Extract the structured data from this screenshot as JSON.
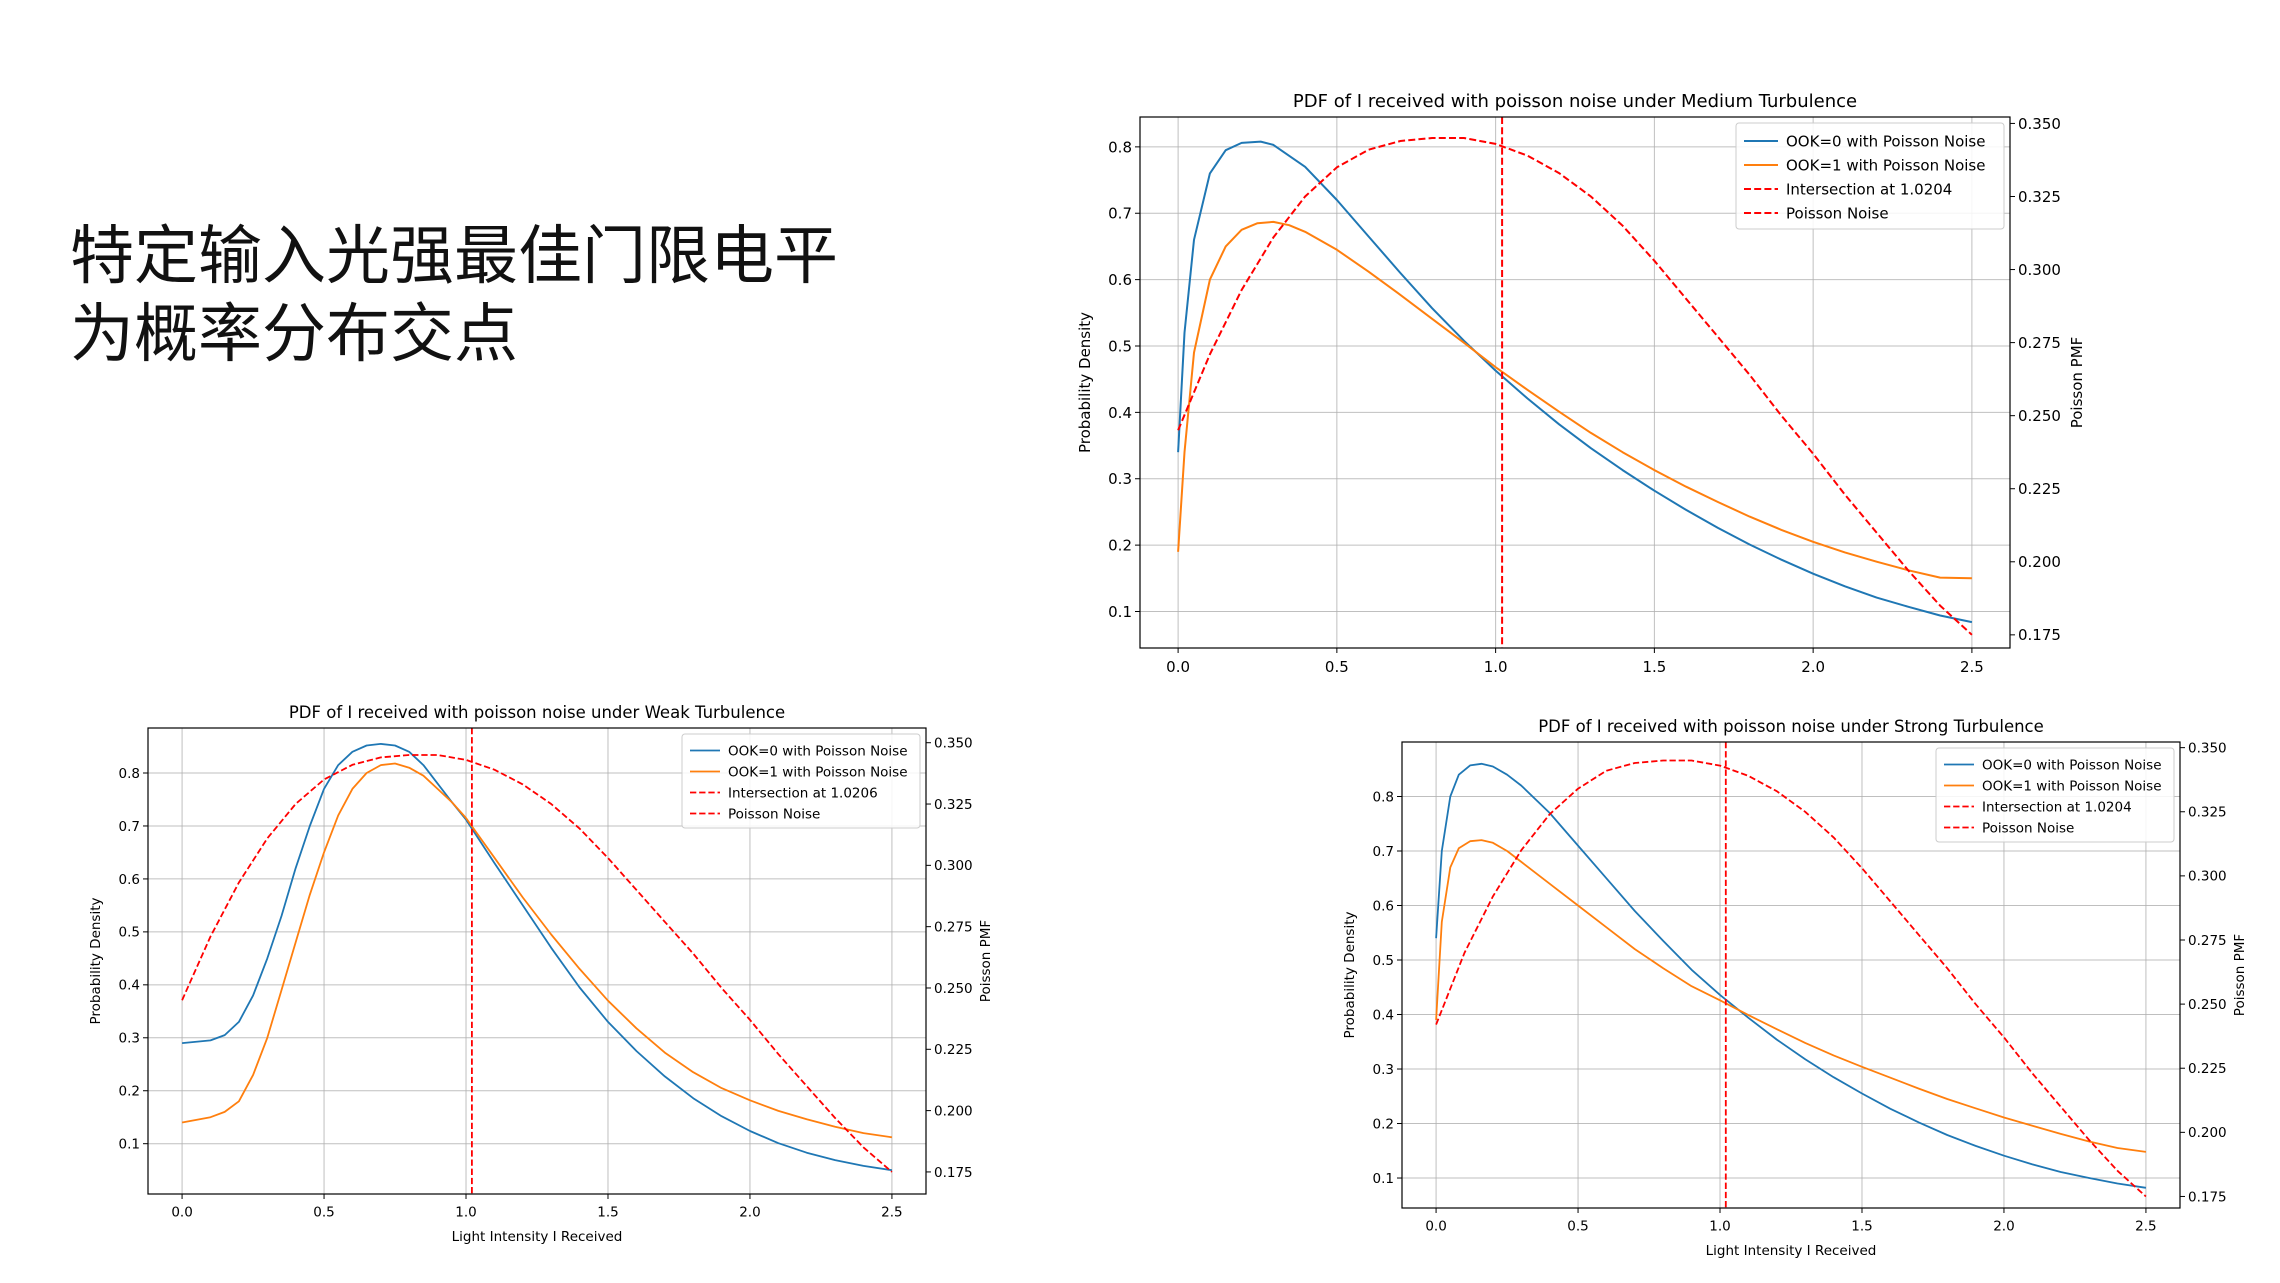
{
  "slide": {
    "title_line1": "特定输入光强最佳门限电平",
    "title_line2": "为概率分布交点"
  },
  "chart_data": [
    {
      "type": "line",
      "panel": "top-right",
      "title": "PDF of I received with poisson noise under Medium Turbulence",
      "xlabel": "",
      "ylabel": "Probability Density",
      "y2label": "Poisson PMF",
      "xlim": [
        -0.12,
        2.62
      ],
      "ylim": [
        0.045,
        0.845
      ],
      "y2lim": [
        0.1705,
        0.3522
      ],
      "xticks": [
        0.0,
        0.5,
        1.0,
        1.5,
        2.0,
        2.5
      ],
      "xtick_labels": [
        "0.0",
        "0.5",
        "1.0",
        "1.5",
        "2.0",
        "2.5"
      ],
      "yticks": [
        0.1,
        0.2,
        0.3,
        0.4,
        0.5,
        0.6,
        0.7,
        0.8
      ],
      "ytick_labels": [
        "0.1",
        "0.2",
        "0.3",
        "0.4",
        "0.5",
        "0.6",
        "0.7",
        "0.8"
      ],
      "y2ticks": [
        0.175,
        0.2,
        0.225,
        0.25,
        0.275,
        0.3,
        0.325,
        0.35
      ],
      "y2tick_labels": [
        "0.175",
        "0.200",
        "0.225",
        "0.250",
        "0.275",
        "0.300",
        "0.325",
        "0.350"
      ],
      "grid": true,
      "legend_position": "top-right",
      "intersection_x": 1.0204,
      "series": [
        {
          "name": "OOK=0 with Poisson Noise",
          "color": "#1f77b4",
          "style": "solid",
          "axis": "left",
          "x": [
            0.0,
            0.02,
            0.05,
            0.1,
            0.15,
            0.2,
            0.26,
            0.3,
            0.4,
            0.5,
            0.6,
            0.7,
            0.8,
            0.9,
            1.0,
            1.1,
            1.2,
            1.3,
            1.4,
            1.5,
            1.6,
            1.7,
            1.8,
            1.9,
            2.0,
            2.1,
            2.2,
            2.3,
            2.4,
            2.5
          ],
          "y": [
            0.34,
            0.52,
            0.66,
            0.76,
            0.795,
            0.806,
            0.808,
            0.803,
            0.77,
            0.72,
            0.665,
            0.61,
            0.557,
            0.508,
            0.463,
            0.421,
            0.382,
            0.346,
            0.313,
            0.282,
            0.253,
            0.226,
            0.201,
            0.178,
            0.157,
            0.138,
            0.121,
            0.107,
            0.094,
            0.084
          ]
        },
        {
          "name": "OOK=1 with Poisson Noise",
          "color": "#ff7f0e",
          "style": "solid",
          "axis": "left",
          "x": [
            0.0,
            0.02,
            0.05,
            0.1,
            0.15,
            0.2,
            0.25,
            0.3,
            0.35,
            0.4,
            0.5,
            0.6,
            0.7,
            0.8,
            0.9,
            1.0,
            1.1,
            1.2,
            1.3,
            1.4,
            1.5,
            1.6,
            1.7,
            1.8,
            1.9,
            2.0,
            2.1,
            2.2,
            2.3,
            2.4,
            2.5
          ],
          "y": [
            0.19,
            0.34,
            0.49,
            0.6,
            0.65,
            0.675,
            0.685,
            0.687,
            0.682,
            0.672,
            0.645,
            0.612,
            0.577,
            0.541,
            0.505,
            0.468,
            0.434,
            0.401,
            0.369,
            0.34,
            0.313,
            0.288,
            0.265,
            0.243,
            0.223,
            0.205,
            0.189,
            0.175,
            0.162,
            0.151,
            0.15
          ]
        },
        {
          "name": "Intersection at 1.0204",
          "color": "#ff0000",
          "style": "dashed",
          "axis": "vertical-line",
          "x": [
            1.0204,
            1.0204
          ],
          "y": [
            0.045,
            0.845
          ]
        },
        {
          "name": "Poisson Noise",
          "color": "#ff0000",
          "style": "dashed",
          "axis": "right",
          "x": [
            0.0,
            0.1,
            0.2,
            0.3,
            0.4,
            0.5,
            0.6,
            0.7,
            0.8,
            0.9,
            1.0,
            1.1,
            1.2,
            1.3,
            1.4,
            1.5,
            1.6,
            1.7,
            1.8,
            1.9,
            2.0,
            2.1,
            2.2,
            2.3,
            2.4,
            2.5
          ],
          "y": [
            0.245,
            0.271,
            0.293,
            0.311,
            0.325,
            0.335,
            0.341,
            0.344,
            0.345,
            0.345,
            0.343,
            0.339,
            0.333,
            0.325,
            0.315,
            0.303,
            0.29,
            0.277,
            0.264,
            0.25,
            0.237,
            0.223,
            0.21,
            0.197,
            0.185,
            0.175
          ]
        }
      ]
    },
    {
      "type": "line",
      "panel": "bottom-left",
      "title": "PDF of I received with poisson noise under Weak Turbulence",
      "xlabel": "Light Intensity I Received",
      "ylabel": "Probability Density",
      "y2label": "Poisson PMF",
      "xlim": [
        -0.12,
        2.62
      ],
      "ylim": [
        0.005,
        0.885
      ],
      "y2lim": [
        0.166,
        0.356
      ],
      "xticks": [
        0.0,
        0.5,
        1.0,
        1.5,
        2.0,
        2.5
      ],
      "xtick_labels": [
        "0.0",
        "0.5",
        "1.0",
        "1.5",
        "2.0",
        "2.5"
      ],
      "yticks": [
        0.1,
        0.2,
        0.3,
        0.4,
        0.5,
        0.6,
        0.7,
        0.8
      ],
      "ytick_labels": [
        "0.1",
        "0.2",
        "0.3",
        "0.4",
        "0.5",
        "0.6",
        "0.7",
        "0.8"
      ],
      "y2ticks": [
        0.175,
        0.2,
        0.225,
        0.25,
        0.275,
        0.3,
        0.325,
        0.35
      ],
      "y2tick_labels": [
        "0.175",
        "0.200",
        "0.225",
        "0.250",
        "0.275",
        "0.300",
        "0.325",
        "0.350"
      ],
      "grid": true,
      "legend_position": "top-right",
      "intersection_x": 1.0206,
      "series": [
        {
          "name": "OOK=0 with Poisson Noise",
          "color": "#1f77b4",
          "style": "solid",
          "axis": "left",
          "x": [
            0.0,
            0.1,
            0.15,
            0.2,
            0.25,
            0.3,
            0.35,
            0.4,
            0.45,
            0.5,
            0.55,
            0.6,
            0.65,
            0.7,
            0.75,
            0.8,
            0.85,
            0.9,
            0.95,
            1.0,
            1.1,
            1.2,
            1.3,
            1.4,
            1.5,
            1.6,
            1.7,
            1.8,
            1.9,
            2.0,
            2.1,
            2.2,
            2.3,
            2.4,
            2.5
          ],
          "y": [
            0.29,
            0.295,
            0.305,
            0.33,
            0.38,
            0.45,
            0.53,
            0.62,
            0.7,
            0.77,
            0.815,
            0.84,
            0.852,
            0.855,
            0.852,
            0.84,
            0.815,
            0.78,
            0.745,
            0.712,
            0.63,
            0.55,
            0.47,
            0.395,
            0.33,
            0.275,
            0.227,
            0.186,
            0.152,
            0.124,
            0.101,
            0.083,
            0.069,
            0.058,
            0.05
          ]
        },
        {
          "name": "OOK=1 with Poisson Noise",
          "color": "#ff7f0e",
          "style": "solid",
          "axis": "left",
          "x": [
            0.0,
            0.1,
            0.15,
            0.2,
            0.25,
            0.3,
            0.35,
            0.4,
            0.45,
            0.5,
            0.55,
            0.6,
            0.65,
            0.7,
            0.75,
            0.8,
            0.85,
            0.9,
            0.95,
            1.0,
            1.1,
            1.2,
            1.3,
            1.4,
            1.5,
            1.6,
            1.7,
            1.8,
            1.9,
            2.0,
            2.1,
            2.2,
            2.3,
            2.4,
            2.5
          ],
          "y": [
            0.14,
            0.15,
            0.16,
            0.18,
            0.23,
            0.3,
            0.39,
            0.48,
            0.57,
            0.65,
            0.72,
            0.77,
            0.8,
            0.815,
            0.818,
            0.81,
            0.795,
            0.77,
            0.745,
            0.715,
            0.64,
            0.565,
            0.495,
            0.43,
            0.37,
            0.318,
            0.272,
            0.235,
            0.205,
            0.182,
            0.162,
            0.146,
            0.132,
            0.12,
            0.112
          ]
        },
        {
          "name": "Intersection at 1.0206",
          "color": "#ff0000",
          "style": "dashed",
          "axis": "vertical-line",
          "x": [
            1.0206,
            1.0206
          ],
          "y": [
            0.005,
            0.885
          ]
        },
        {
          "name": "Poisson Noise",
          "color": "#ff0000",
          "style": "dashed",
          "axis": "right",
          "x": [
            0.0,
            0.1,
            0.2,
            0.3,
            0.4,
            0.5,
            0.6,
            0.7,
            0.8,
            0.9,
            1.0,
            1.1,
            1.2,
            1.3,
            1.4,
            1.5,
            1.6,
            1.7,
            1.8,
            1.9,
            2.0,
            2.1,
            2.2,
            2.3,
            2.4,
            2.5
          ],
          "y": [
            0.245,
            0.271,
            0.293,
            0.311,
            0.325,
            0.335,
            0.341,
            0.344,
            0.345,
            0.345,
            0.343,
            0.339,
            0.333,
            0.325,
            0.315,
            0.303,
            0.29,
            0.277,
            0.264,
            0.25,
            0.237,
            0.223,
            0.21,
            0.197,
            0.185,
            0.175
          ]
        }
      ]
    },
    {
      "type": "line",
      "panel": "bottom-right",
      "title": "PDF of I received with poisson noise under Strong Turbulence",
      "xlabel": "Light Intensity I Received",
      "ylabel": "Probability Density",
      "y2label": "Poisson PMF",
      "xlim": [
        -0.12,
        2.62
      ],
      "ylim": [
        0.045,
        0.9
      ],
      "y2lim": [
        0.1705,
        0.3522
      ],
      "xticks": [
        0.0,
        0.5,
        1.0,
        1.5,
        2.0,
        2.5
      ],
      "xtick_labels": [
        "0.0",
        "0.5",
        "1.0",
        "1.5",
        "2.0",
        "2.5"
      ],
      "yticks": [
        0.1,
        0.2,
        0.3,
        0.4,
        0.5,
        0.6,
        0.7,
        0.8
      ],
      "ytick_labels": [
        "0.1",
        "0.2",
        "0.3",
        "0.4",
        "0.5",
        "0.6",
        "0.7",
        "0.8"
      ],
      "y2ticks": [
        0.175,
        0.2,
        0.225,
        0.25,
        0.275,
        0.3,
        0.325,
        0.35
      ],
      "y2tick_labels": [
        "0.175",
        "0.200",
        "0.225",
        "0.250",
        "0.275",
        "0.300",
        "0.325",
        "0.350"
      ],
      "grid": true,
      "legend_position": "top-right",
      "intersection_x": 1.0204,
      "series": [
        {
          "name": "OOK=0 with Poisson Noise",
          "color": "#1f77b4",
          "style": "solid",
          "axis": "left",
          "x": [
            0.0,
            0.02,
            0.05,
            0.08,
            0.12,
            0.16,
            0.2,
            0.25,
            0.3,
            0.4,
            0.5,
            0.6,
            0.7,
            0.8,
            0.9,
            1.0,
            1.1,
            1.2,
            1.3,
            1.4,
            1.5,
            1.6,
            1.7,
            1.8,
            1.9,
            2.0,
            2.1,
            2.2,
            2.3,
            2.4,
            2.5
          ],
          "y": [
            0.54,
            0.7,
            0.8,
            0.84,
            0.857,
            0.86,
            0.855,
            0.84,
            0.82,
            0.77,
            0.71,
            0.65,
            0.59,
            0.535,
            0.482,
            0.436,
            0.394,
            0.354,
            0.318,
            0.285,
            0.255,
            0.227,
            0.202,
            0.179,
            0.159,
            0.141,
            0.125,
            0.111,
            0.1,
            0.09,
            0.082
          ]
        },
        {
          "name": "OOK=1 with Poisson Noise",
          "color": "#ff7f0e",
          "style": "solid",
          "axis": "left",
          "x": [
            0.0,
            0.02,
            0.05,
            0.08,
            0.12,
            0.16,
            0.2,
            0.25,
            0.3,
            0.4,
            0.5,
            0.6,
            0.7,
            0.8,
            0.9,
            1.0,
            1.1,
            1.2,
            1.3,
            1.4,
            1.5,
            1.6,
            1.7,
            1.8,
            1.9,
            2.0,
            2.1,
            2.2,
            2.3,
            2.4,
            2.5
          ],
          "y": [
            0.39,
            0.57,
            0.67,
            0.705,
            0.718,
            0.72,
            0.715,
            0.7,
            0.68,
            0.64,
            0.6,
            0.56,
            0.52,
            0.485,
            0.452,
            0.426,
            0.399,
            0.373,
            0.348,
            0.325,
            0.304,
            0.284,
            0.264,
            0.245,
            0.228,
            0.211,
            0.196,
            0.181,
            0.167,
            0.155,
            0.148
          ]
        },
        {
          "name": "Intersection at 1.0204",
          "color": "#ff0000",
          "style": "dashed",
          "axis": "vertical-line",
          "x": [
            1.0204,
            1.0204
          ],
          "y": [
            0.045,
            0.9
          ]
        },
        {
          "name": "Poisson Noise",
          "color": "#ff0000",
          "style": "dashed",
          "axis": "right",
          "x": [
            0.0,
            0.1,
            0.2,
            0.3,
            0.4,
            0.5,
            0.6,
            0.7,
            0.8,
            0.9,
            1.0,
            1.1,
            1.2,
            1.3,
            1.4,
            1.5,
            1.6,
            1.7,
            1.8,
            1.9,
            2.0,
            2.1,
            2.2,
            2.3,
            2.4,
            2.5
          ],
          "y": [
            0.242,
            0.27,
            0.292,
            0.31,
            0.324,
            0.334,
            0.341,
            0.344,
            0.345,
            0.345,
            0.343,
            0.339,
            0.333,
            0.325,
            0.315,
            0.303,
            0.29,
            0.277,
            0.264,
            0.25,
            0.237,
            0.223,
            0.21,
            0.197,
            0.185,
            0.175
          ]
        }
      ]
    }
  ]
}
